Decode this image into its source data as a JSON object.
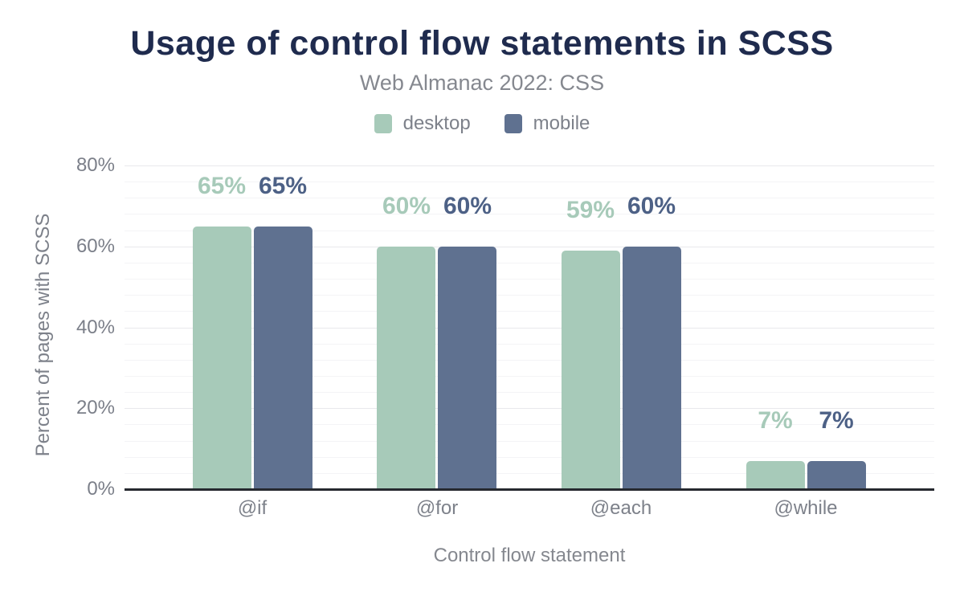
{
  "header": {
    "title": "Usage of control flow statements in SCSS",
    "subtitle": "Web Almanac 2022: CSS"
  },
  "colors": {
    "title_text": "#1f2b4e",
    "muted_text": "#7d818a",
    "desktop": "#a7cab9",
    "mobile_bar": "#5f7190",
    "mobile_label": "#4d6186",
    "gridline_minor": "#f4f4f6",
    "gridline_major": "#e8e9ec",
    "axis_line": "#26292f"
  },
  "chart_data": {
    "type": "bar",
    "title": "Usage of control flow statements in SCSS",
    "subtitle": "Web Almanac 2022: CSS",
    "categories": [
      "@if",
      "@for",
      "@each",
      "@while"
    ],
    "series": [
      {
        "name": "desktop",
        "color": "#a7cab9",
        "label_color": "#a7cab9",
        "values": [
          65,
          60,
          59,
          7
        ],
        "data_labels": [
          "65%",
          "60%",
          "59%",
          "7%"
        ]
      },
      {
        "name": "mobile",
        "color": "#5f7190",
        "label_color": "#4d6186",
        "values": [
          65,
          60,
          60,
          7
        ],
        "data_labels": [
          "65%",
          "60%",
          "60%",
          "7%"
        ]
      }
    ],
    "xlabel": "Control flow statement",
    "ylabel": "Percent of pages with SCSS",
    "ylim": [
      0,
      80
    ],
    "yticks": [
      {
        "value": 0,
        "label": "0%"
      },
      {
        "value": 20,
        "label": "20%"
      },
      {
        "value": 40,
        "label": "40%"
      },
      {
        "value": 60,
        "label": "60%"
      },
      {
        "value": 80,
        "label": "80%"
      }
    ],
    "minor_grid_step_pct": 4,
    "grid": true,
    "legend_position": "top-center"
  }
}
